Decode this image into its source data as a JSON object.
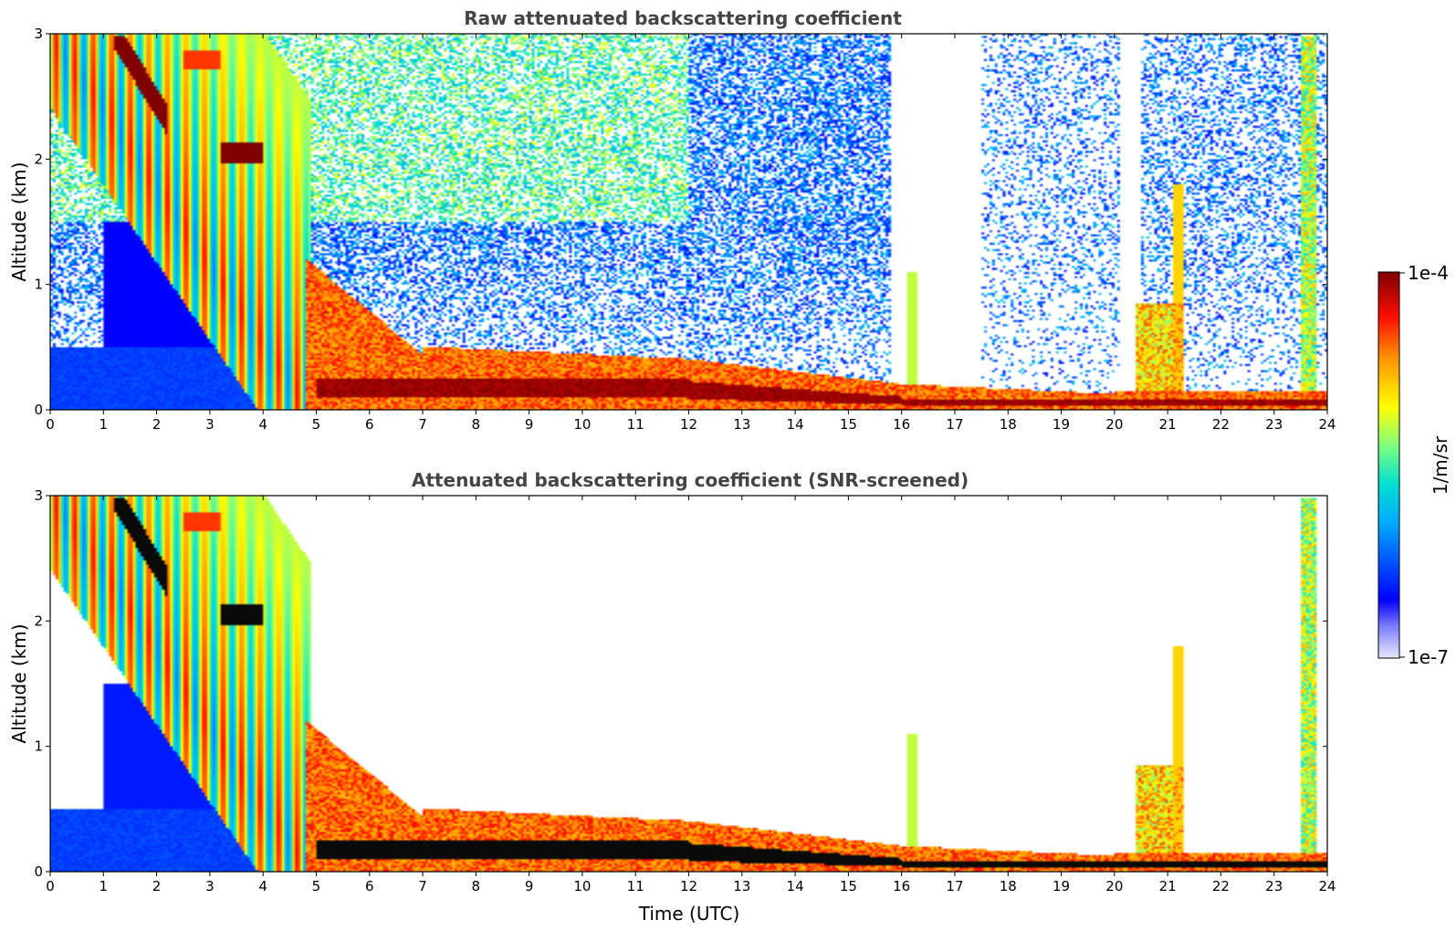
{
  "chart_data": [
    {
      "type": "heatmap",
      "title": "Raw attenuated backscattering coefficient",
      "xlabel": "",
      "ylabel": "Altitude (km)",
      "xlim": [
        0,
        24
      ],
      "ylim": [
        0,
        3
      ],
      "xticks": [
        "0",
        "1",
        "2",
        "3",
        "4",
        "5",
        "6",
        "7",
        "8",
        "9",
        "10",
        "11",
        "12",
        "13",
        "14",
        "15",
        "16",
        "17",
        "18",
        "19",
        "20",
        "21",
        "22",
        "23",
        "24"
      ],
      "yticks": [
        "0",
        "1",
        "2",
        "3"
      ],
      "screened": false
    },
    {
      "type": "heatmap",
      "title": "Attenuated backscattering coefficient (SNR-screened)",
      "xlabel": "Time (UTC)",
      "ylabel": "Altitude (km)",
      "xlim": [
        0,
        24
      ],
      "ylim": [
        0,
        3
      ],
      "xticks": [
        "0",
        "1",
        "2",
        "3",
        "4",
        "5",
        "6",
        "7",
        "8",
        "9",
        "10",
        "11",
        "12",
        "13",
        "14",
        "15",
        "16",
        "17",
        "18",
        "19",
        "20",
        "21",
        "22",
        "23",
        "24"
      ],
      "yticks": [
        "0",
        "1",
        "2",
        "3"
      ],
      "screened": true
    }
  ],
  "colorbar": {
    "label": "1/m/sr",
    "max_label": "1e-4",
    "min_label": "1e-7",
    "colormap": [
      "#e6e6f7",
      "#0000ff",
      "#00c8ff",
      "#66ff99",
      "#ffff00",
      "#ff8000",
      "#ff0000",
      "#800000"
    ]
  }
}
